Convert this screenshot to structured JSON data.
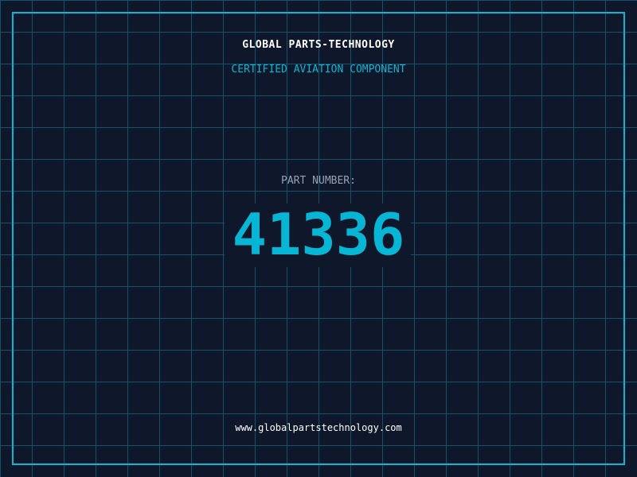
{
  "header": {
    "title": "GLOBAL PARTS-TECHNOLOGY",
    "subtitle": "CERTIFIED AVIATION COMPONENT"
  },
  "part": {
    "label": "PART NUMBER:",
    "number": "41336"
  },
  "footer": {
    "url": "www.globalpartstechnology.com"
  },
  "colors": {
    "background": "#0f172a",
    "accent": "#06b6d4",
    "grid": "#155e75",
    "label": "#94a3b8"
  }
}
